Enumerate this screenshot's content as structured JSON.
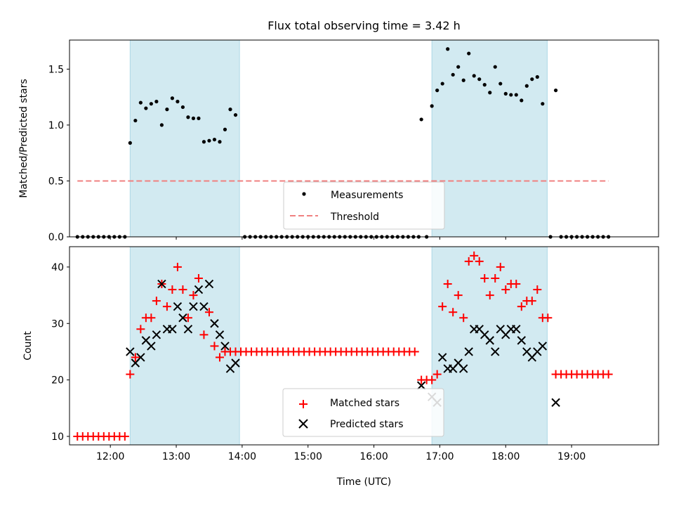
{
  "chart_data": [
    {
      "type": "scatter",
      "title": "Flux total observing time = 3.42 h",
      "ylabel": "Matched/Predicted stars",
      "xlabel": "",
      "xlim": [
        11.38,
        20.32
      ],
      "ylim": [
        0.0,
        1.76
      ],
      "yticks": [
        0.0,
        0.5,
        1.0,
        1.5
      ],
      "ytick_labels": [
        "0.0",
        "0.5",
        "1.0",
        "1.5"
      ],
      "xticks": [
        12,
        13,
        14,
        15,
        16,
        17,
        18,
        19
      ],
      "grid": false,
      "legend": "lower-center",
      "shaded_spans": [
        [
          12.3,
          13.96
        ],
        [
          16.88,
          18.63
        ]
      ],
      "span_color": "#add8e6",
      "series": [
        {
          "name": "Measurements",
          "marker": "dot",
          "color": "#000000",
          "points": [
            [
              11.5,
              0
            ],
            [
              11.58,
              0
            ],
            [
              11.66,
              0
            ],
            [
              11.74,
              0
            ],
            [
              11.82,
              0
            ],
            [
              11.9,
              0
            ],
            [
              11.98,
              0
            ],
            [
              12.06,
              0
            ],
            [
              12.14,
              0
            ],
            [
              12.22,
              0
            ],
            [
              12.3,
              0.84
            ],
            [
              12.38,
              1.04
            ],
            [
              12.46,
              1.2
            ],
            [
              12.54,
              1.15
            ],
            [
              12.62,
              1.19
            ],
            [
              12.7,
              1.21
            ],
            [
              12.78,
              1.0
            ],
            [
              12.86,
              1.14
            ],
            [
              12.94,
              1.24
            ],
            [
              13.02,
              1.21
            ],
            [
              13.1,
              1.16
            ],
            [
              13.18,
              1.07
            ],
            [
              13.26,
              1.06
            ],
            [
              13.34,
              1.06
            ],
            [
              13.42,
              0.85
            ],
            [
              13.5,
              0.86
            ],
            [
              13.58,
              0.87
            ],
            [
              13.66,
              0.85
            ],
            [
              13.74,
              0.96
            ],
            [
              13.82,
              1.14
            ],
            [
              13.9,
              1.09
            ],
            [
              14.04,
              0
            ],
            [
              14.12,
              0
            ],
            [
              14.2,
              0
            ],
            [
              14.28,
              0
            ],
            [
              14.36,
              0
            ],
            [
              14.44,
              0
            ],
            [
              14.52,
              0
            ],
            [
              14.6,
              0
            ],
            [
              14.68,
              0
            ],
            [
              14.76,
              0
            ],
            [
              14.84,
              0
            ],
            [
              14.92,
              0
            ],
            [
              15.0,
              0
            ],
            [
              15.08,
              0
            ],
            [
              15.16,
              0
            ],
            [
              15.24,
              0
            ],
            [
              15.32,
              0
            ],
            [
              15.4,
              0
            ],
            [
              15.48,
              0
            ],
            [
              15.56,
              0
            ],
            [
              15.64,
              0
            ],
            [
              15.72,
              0
            ],
            [
              15.8,
              0
            ],
            [
              15.88,
              0
            ],
            [
              15.96,
              0
            ],
            [
              16.04,
              0
            ],
            [
              16.12,
              0
            ],
            [
              16.2,
              0
            ],
            [
              16.28,
              0
            ],
            [
              16.36,
              0
            ],
            [
              16.44,
              0
            ],
            [
              16.52,
              0
            ],
            [
              16.6,
              0
            ],
            [
              16.68,
              0
            ],
            [
              16.8,
              0
            ],
            [
              16.72,
              1.05
            ],
            [
              16.88,
              1.17
            ],
            [
              16.96,
              1.31
            ],
            [
              17.04,
              1.37
            ],
            [
              17.12,
              1.68
            ],
            [
              17.2,
              1.45
            ],
            [
              17.28,
              1.52
            ],
            [
              17.36,
              1.4
            ],
            [
              17.44,
              1.64
            ],
            [
              17.52,
              1.44
            ],
            [
              17.6,
              1.41
            ],
            [
              17.68,
              1.36
            ],
            [
              17.76,
              1.29
            ],
            [
              17.84,
              1.52
            ],
            [
              17.92,
              1.37
            ],
            [
              18.0,
              1.28
            ],
            [
              18.08,
              1.27
            ],
            [
              18.16,
              1.27
            ],
            [
              18.24,
              1.22
            ],
            [
              18.32,
              1.35
            ],
            [
              18.4,
              1.41
            ],
            [
              18.48,
              1.43
            ],
            [
              18.56,
              1.19
            ],
            [
              18.76,
              1.31
            ],
            [
              18.68,
              0
            ],
            [
              18.84,
              0
            ],
            [
              18.92,
              0
            ],
            [
              19.0,
              0
            ],
            [
              19.08,
              0
            ],
            [
              19.16,
              0
            ],
            [
              19.24,
              0
            ],
            [
              19.32,
              0
            ],
            [
              19.4,
              0
            ],
            [
              19.48,
              0
            ],
            [
              19.56,
              0
            ]
          ]
        },
        {
          "name": "Threshold",
          "marker": "dashed-line",
          "color": "#f08080",
          "points": [
            [
              11.5,
              0.5
            ],
            [
              19.56,
              0.5
            ]
          ]
        }
      ]
    },
    {
      "type": "scatter",
      "title": "",
      "ylabel": "Count",
      "xlabel": "Time (UTC)",
      "xlim": [
        11.38,
        20.32
      ],
      "ylim": [
        8.5,
        43.6
      ],
      "yticks": [
        10,
        20,
        30,
        40
      ],
      "ytick_labels": [
        "10",
        "20",
        "30",
        "40"
      ],
      "xticks": [
        12,
        13,
        14,
        15,
        16,
        17,
        18,
        19
      ],
      "xtick_labels": [
        "12:00",
        "13:00",
        "14:00",
        "15:00",
        "16:00",
        "17:00",
        "18:00",
        "19:00"
      ],
      "grid": false,
      "legend": "lower-center",
      "shaded_spans": [
        [
          12.3,
          13.96
        ],
        [
          16.88,
          18.63
        ]
      ],
      "span_color": "#add8e6",
      "series": [
        {
          "name": "Matched stars",
          "marker": "plus",
          "color": "#ff0000",
          "points": [
            [
              11.5,
              10
            ],
            [
              11.58,
              10
            ],
            [
              11.66,
              10
            ],
            [
              11.74,
              10
            ],
            [
              11.82,
              10
            ],
            [
              11.9,
              10
            ],
            [
              11.98,
              10
            ],
            [
              12.06,
              10
            ],
            [
              12.14,
              10
            ],
            [
              12.22,
              10
            ],
            [
              12.3,
              21
            ],
            [
              12.38,
              24
            ],
            [
              12.46,
              29
            ],
            [
              12.54,
              31
            ],
            [
              12.62,
              31
            ],
            [
              12.7,
              34
            ],
            [
              12.78,
              37
            ],
            [
              12.86,
              33
            ],
            [
              12.94,
              36
            ],
            [
              13.02,
              40
            ],
            [
              13.1,
              36
            ],
            [
              13.18,
              31
            ],
            [
              13.26,
              35
            ],
            [
              13.34,
              38
            ],
            [
              13.42,
              28
            ],
            [
              13.5,
              32
            ],
            [
              13.58,
              26
            ],
            [
              13.66,
              24
            ],
            [
              13.74,
              25
            ],
            [
              13.82,
              25
            ],
            [
              13.9,
              25
            ],
            [
              13.98,
              25
            ],
            [
              14.06,
              25
            ],
            [
              14.14,
              25
            ],
            [
              14.22,
              25
            ],
            [
              14.3,
              25
            ],
            [
              14.38,
              25
            ],
            [
              14.46,
              25
            ],
            [
              14.54,
              25
            ],
            [
              14.62,
              25
            ],
            [
              14.7,
              25
            ],
            [
              14.78,
              25
            ],
            [
              14.86,
              25
            ],
            [
              14.94,
              25
            ],
            [
              15.02,
              25
            ],
            [
              15.1,
              25
            ],
            [
              15.18,
              25
            ],
            [
              15.26,
              25
            ],
            [
              15.34,
              25
            ],
            [
              15.42,
              25
            ],
            [
              15.5,
              25
            ],
            [
              15.58,
              25
            ],
            [
              15.66,
              25
            ],
            [
              15.74,
              25
            ],
            [
              15.82,
              25
            ],
            [
              15.9,
              25
            ],
            [
              15.98,
              25
            ],
            [
              16.06,
              25
            ],
            [
              16.14,
              25
            ],
            [
              16.22,
              25
            ],
            [
              16.3,
              25
            ],
            [
              16.38,
              25
            ],
            [
              16.46,
              25
            ],
            [
              16.54,
              25
            ],
            [
              16.62,
              25
            ],
            [
              16.72,
              20
            ],
            [
              16.8,
              20
            ],
            [
              16.88,
              20
            ],
            [
              16.96,
              21
            ],
            [
              17.04,
              33
            ],
            [
              17.12,
              37
            ],
            [
              17.2,
              32
            ],
            [
              17.28,
              35
            ],
            [
              17.36,
              31
            ],
            [
              17.44,
              41
            ],
            [
              17.52,
              42
            ],
            [
              17.6,
              41
            ],
            [
              17.68,
              38
            ],
            [
              17.76,
              35
            ],
            [
              17.84,
              38
            ],
            [
              17.92,
              40
            ],
            [
              18.0,
              36
            ],
            [
              18.08,
              37
            ],
            [
              18.16,
              37
            ],
            [
              18.24,
              33
            ],
            [
              18.32,
              34
            ],
            [
              18.4,
              34
            ],
            [
              18.48,
              36
            ],
            [
              18.56,
              31
            ],
            [
              18.64,
              31
            ],
            [
              18.76,
              21
            ],
            [
              18.84,
              21
            ],
            [
              18.92,
              21
            ],
            [
              19.0,
              21
            ],
            [
              19.08,
              21
            ],
            [
              19.16,
              21
            ],
            [
              19.24,
              21
            ],
            [
              19.32,
              21
            ],
            [
              19.4,
              21
            ],
            [
              19.48,
              21
            ],
            [
              19.56,
              21
            ]
          ]
        },
        {
          "name": "Predicted stars",
          "marker": "x",
          "color": "#000000",
          "points": [
            [
              12.3,
              25
            ],
            [
              12.38,
              23
            ],
            [
              12.46,
              24
            ],
            [
              12.54,
              27
            ],
            [
              12.62,
              26
            ],
            [
              12.7,
              28
            ],
            [
              12.78,
              37
            ],
            [
              12.86,
              29
            ],
            [
              12.94,
              29
            ],
            [
              13.02,
              33
            ],
            [
              13.1,
              31
            ],
            [
              13.18,
              29
            ],
            [
              13.26,
              33
            ],
            [
              13.34,
              36
            ],
            [
              13.42,
              33
            ],
            [
              13.5,
              37
            ],
            [
              13.58,
              30
            ],
            [
              13.66,
              28
            ],
            [
              13.74,
              26
            ],
            [
              13.82,
              22
            ],
            [
              13.9,
              23
            ],
            [
              16.72,
              19
            ],
            [
              16.88,
              17
            ],
            [
              16.96,
              16
            ],
            [
              17.04,
              24
            ],
            [
              17.12,
              22
            ],
            [
              17.2,
              22
            ],
            [
              17.28,
              23
            ],
            [
              17.36,
              22
            ],
            [
              17.44,
              25
            ],
            [
              17.52,
              29
            ],
            [
              17.6,
              29
            ],
            [
              17.68,
              28
            ],
            [
              17.76,
              27
            ],
            [
              17.84,
              25
            ],
            [
              17.92,
              29
            ],
            [
              18.0,
              28
            ],
            [
              18.08,
              29
            ],
            [
              18.16,
              29
            ],
            [
              18.24,
              27
            ],
            [
              18.32,
              25
            ],
            [
              18.4,
              24
            ],
            [
              18.48,
              25
            ],
            [
              18.56,
              26
            ],
            [
              18.76,
              16
            ]
          ]
        }
      ]
    }
  ]
}
